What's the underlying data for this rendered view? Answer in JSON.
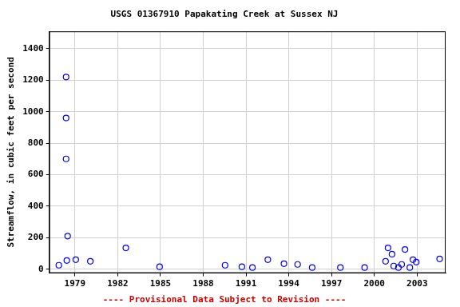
{
  "chart_data": {
    "type": "scatter",
    "title": "USGS 01367910 Papakating Creek at Sussex NJ",
    "subtitle": "---- Provisional Data Subject to Revision ----",
    "y_label": "Streamflow, in cubic feet per second",
    "x": [
      1977.87,
      1978.43,
      1978.38,
      1978.38,
      1978.38,
      1978.49,
      1979.06,
      1980.08,
      1982.57,
      1984.94,
      1989.53,
      1990.71,
      1991.45,
      1992.53,
      1993.66,
      1994.62,
      1995.64,
      1997.62,
      1999.32,
      2000.79,
      2000.96,
      2001.24,
      2001.36,
      2001.69,
      2001.92,
      2002.15,
      2002.49,
      2002.71,
      2002.94,
      2004.58
    ],
    "values": [
      25,
      55,
      1220,
      960,
      700,
      210,
      60,
      50,
      135,
      15,
      25,
      15,
      10,
      60,
      35,
      30,
      10,
      10,
      10,
      50,
      135,
      95,
      20,
      10,
      30,
      125,
      10,
      60,
      45,
      65
    ],
    "color": "#0000ff",
    "marker": "circle",
    "xlim": [
      1977.2,
      2005.0
    ],
    "xticks": [
      1979,
      1982,
      1985,
      1988,
      1991,
      1994,
      1997,
      2000,
      2003
    ],
    "ylim": [
      -25,
      1510
    ],
    "yticks": [
      0,
      200,
      400,
      600,
      800,
      1000,
      1200,
      1400
    ],
    "grid": true
  }
}
